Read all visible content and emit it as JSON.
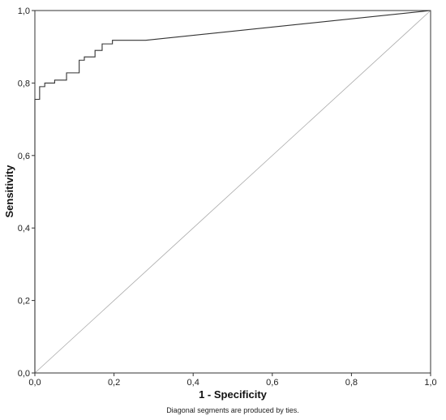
{
  "chart_data": {
    "type": "line",
    "title": "",
    "xlabel": "1 - Specificity",
    "ylabel": "Sensitivity",
    "xlim": [
      0,
      1
    ],
    "ylim": [
      0,
      1
    ],
    "x_ticks": [
      "0,0",
      "0,2",
      "0,4",
      "0,6",
      "0,8",
      "1,0"
    ],
    "y_ticks": [
      "0,0",
      "0,2",
      "0,4",
      "0,6",
      "0,8",
      "1,0"
    ],
    "grid": false,
    "footnote": "Diagonal segments are produced by ties.",
    "series": [
      {
        "role": "roc-curve",
        "color": "#333333",
        "x": [
          0.0,
          0.0,
          0.012,
          0.012,
          0.025,
          0.025,
          0.05,
          0.05,
          0.08,
          0.08,
          0.112,
          0.112,
          0.125,
          0.125,
          0.152,
          0.152,
          0.17,
          0.17,
          0.196,
          0.196,
          0.28,
          1.0
        ],
        "y": [
          0.0,
          0.755,
          0.755,
          0.79,
          0.79,
          0.8,
          0.8,
          0.808,
          0.808,
          0.828,
          0.828,
          0.863,
          0.863,
          0.872,
          0.872,
          0.89,
          0.89,
          0.908,
          0.908,
          0.918,
          0.918,
          1.0
        ]
      },
      {
        "role": "reference-line",
        "color": "#aaaaaa",
        "x": [
          0.0,
          1.0
        ],
        "y": [
          0.0,
          1.0
        ]
      }
    ]
  }
}
